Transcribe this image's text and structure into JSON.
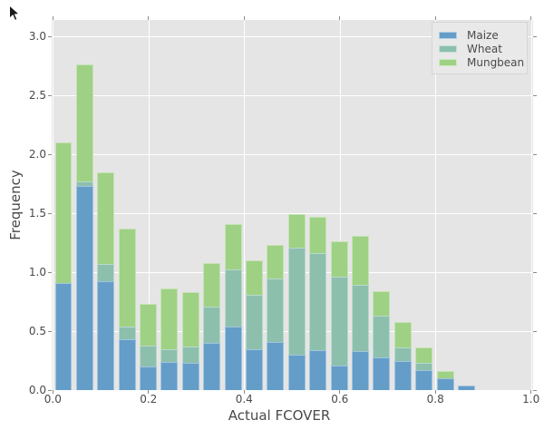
{
  "style": {
    "figure_background": "#ffffff",
    "plot_background": "#e5e5e5",
    "grid_color": "#ffffff",
    "tick_color": "#8a8a8a",
    "text_color": "#4a4a4a",
    "legend_background": "#e9e9e9",
    "legend_border": "#d5d5d5"
  },
  "chart_data": {
    "type": "bar",
    "subtype": "stacked_histogram",
    "title": "",
    "xlabel": "Actual FCOVER",
    "ylabel": "Frequency",
    "x_tick_labels": [
      "0.0",
      "0.2",
      "0.4",
      "0.6",
      "0.8",
      "1.0"
    ],
    "y_tick_labels": [
      "0.0",
      "0.5",
      "1.0",
      "1.5",
      "2.0",
      "2.5",
      "3.0"
    ],
    "xlim": [
      0.0,
      1.0
    ],
    "ylim": [
      0.0,
      3.14
    ],
    "grid": true,
    "legend_position": "upper-right",
    "bin_edges": [
      0.0,
      0.0444,
      0.0887,
      0.1331,
      0.1774,
      0.2218,
      0.2661,
      0.3105,
      0.3548,
      0.3992,
      0.4435,
      0.4879,
      0.5322,
      0.5766,
      0.6209,
      0.6653,
      0.7096,
      0.754,
      0.7983,
      0.8427,
      0.887
    ],
    "series": [
      {
        "name": "Maize",
        "color": "#649dc8",
        "values": [
          0.91,
          1.73,
          0.92,
          0.43,
          0.2,
          0.24,
          0.23,
          0.4,
          0.54,
          0.35,
          0.41,
          0.3,
          0.34,
          0.21,
          0.33,
          0.28,
          0.25,
          0.17,
          0.1,
          0.04
        ]
      },
      {
        "name": "Wheat",
        "color": "#8dbfad",
        "values": [
          0.0,
          0.04,
          0.15,
          0.11,
          0.18,
          0.11,
          0.14,
          0.31,
          0.48,
          0.46,
          0.54,
          0.91,
          0.82,
          0.75,
          0.56,
          0.35,
          0.11,
          0.06,
          0.0,
          0.0
        ]
      },
      {
        "name": "Mungbean",
        "color": "#9ed184",
        "values": [
          1.19,
          0.99,
          0.78,
          0.83,
          0.35,
          0.51,
          0.46,
          0.37,
          0.39,
          0.29,
          0.28,
          0.28,
          0.31,
          0.3,
          0.42,
          0.21,
          0.22,
          0.13,
          0.06,
          0.0
        ]
      }
    ]
  }
}
